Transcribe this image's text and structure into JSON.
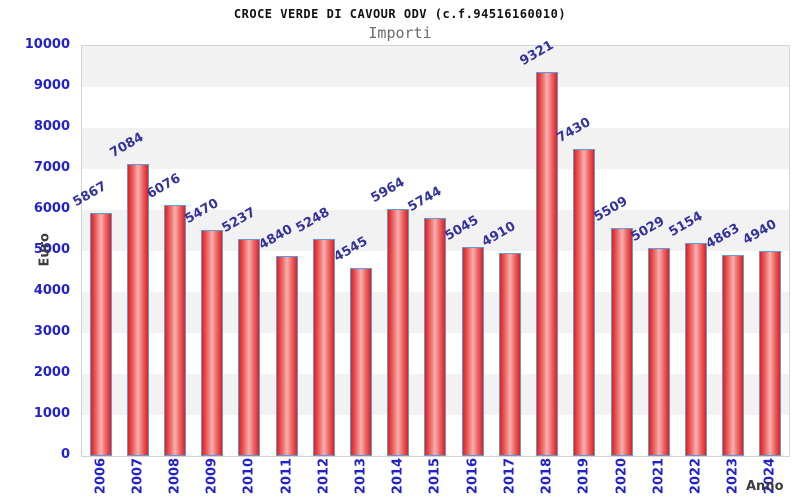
{
  "header": {
    "title": "CROCE VERDE DI CAVOUR ODV (c.f.94516160010)",
    "subtitle": "Importi"
  },
  "chart_data": {
    "type": "bar",
    "title": "CROCE VERDE DI CAVOUR ODV (c.f.94516160010)",
    "subtitle": "Importi",
    "xlabel": "Anno",
    "ylabel": "Euro",
    "categories": [
      "2006",
      "2007",
      "2008",
      "2009",
      "2010",
      "2011",
      "2012",
      "2013",
      "2014",
      "2015",
      "2016",
      "2017",
      "2018",
      "2019",
      "2020",
      "2021",
      "2022",
      "2023",
      "2024"
    ],
    "values": [
      5867,
      7084,
      6076,
      5470,
      5237,
      4840,
      5248,
      4545,
      5964,
      5744,
      5045,
      4910,
      9321,
      7430,
      5509,
      5029,
      5154,
      4863,
      4940
    ],
    "ylim": [
      0,
      10000
    ],
    "ytick_step": 1000,
    "ytick_labels": [
      "10000",
      "9000",
      "8000",
      "7000",
      "6000",
      "5000",
      "4000",
      "3000",
      "2000",
      "1000",
      "0"
    ],
    "grid": "alternating horizontal bands",
    "legend": "none",
    "colors": {
      "bar_fill_edge": "#df1f1f",
      "bar_fill_center": "#f8b0b0",
      "bar_border": "#5f9bd8",
      "axis_tick_label": "#2222cc",
      "value_label": "#333399",
      "band_gray": "#f2f2f2",
      "band_white": "#ffffff",
      "plot_border": "#d4d4d4",
      "axis_title": "#3c3c3c",
      "title": "#111111",
      "subtitle": "#6b6b6b"
    }
  }
}
